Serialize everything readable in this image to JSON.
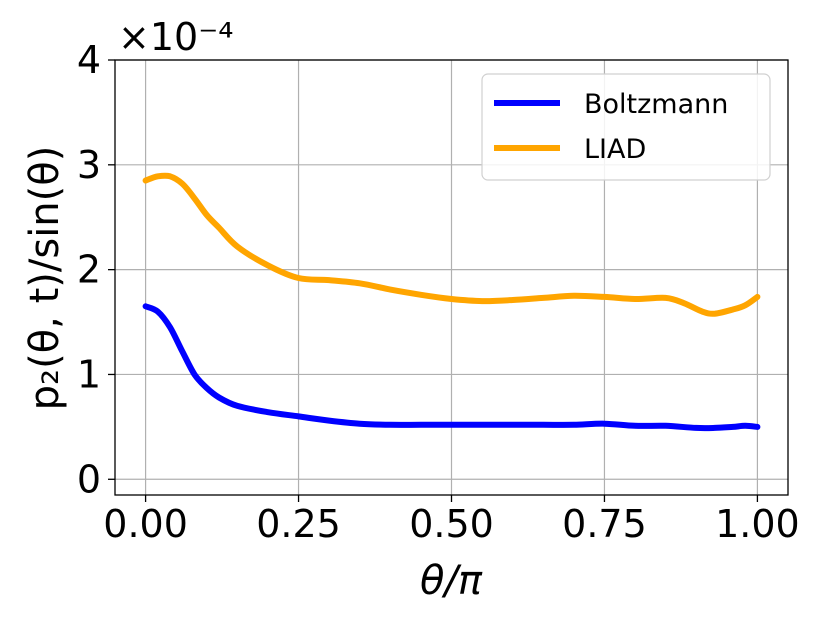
{
  "chart_data": {
    "type": "line",
    "title": "",
    "xlabel": "θ/π",
    "ylabel": "p₂(θ, t)/sin(θ)",
    "y_offset_label": "×10⁻⁴",
    "xlim": [
      -0.05,
      1.05
    ],
    "ylim": [
      -0.15,
      4.0
    ],
    "x_ticks": [
      0.0,
      0.25,
      0.5,
      0.75,
      1.0
    ],
    "x_tick_labels": [
      "0.00",
      "0.25",
      "0.50",
      "0.75",
      "1.00"
    ],
    "y_ticks": [
      0,
      1,
      2,
      3,
      4
    ],
    "y_tick_labels": [
      "0",
      "1",
      "2",
      "3",
      "4"
    ],
    "grid": true,
    "legend_position": "top-right",
    "series": [
      {
        "name": "Boltzmann",
        "color": "#0000ff",
        "x": [
          0.0,
          0.02,
          0.04,
          0.06,
          0.08,
          0.1,
          0.12,
          0.15,
          0.2,
          0.25,
          0.3,
          0.35,
          0.4,
          0.45,
          0.5,
          0.55,
          0.6,
          0.65,
          0.7,
          0.75,
          0.8,
          0.85,
          0.9,
          0.93,
          0.96,
          0.98,
          1.0
        ],
        "values": [
          1.65,
          1.6,
          1.45,
          1.22,
          1.0,
          0.87,
          0.78,
          0.7,
          0.64,
          0.6,
          0.56,
          0.53,
          0.52,
          0.52,
          0.52,
          0.52,
          0.52,
          0.52,
          0.52,
          0.53,
          0.51,
          0.51,
          0.49,
          0.49,
          0.5,
          0.51,
          0.5
        ]
      },
      {
        "name": "LIAD",
        "color": "#ffa500",
        "x": [
          0.0,
          0.02,
          0.04,
          0.06,
          0.08,
          0.1,
          0.12,
          0.15,
          0.2,
          0.25,
          0.3,
          0.35,
          0.4,
          0.45,
          0.5,
          0.55,
          0.6,
          0.65,
          0.7,
          0.75,
          0.8,
          0.85,
          0.88,
          0.91,
          0.93,
          0.96,
          0.98,
          1.0
        ],
        "values": [
          2.85,
          2.89,
          2.89,
          2.82,
          2.68,
          2.52,
          2.4,
          2.22,
          2.04,
          1.92,
          1.9,
          1.87,
          1.81,
          1.76,
          1.72,
          1.7,
          1.71,
          1.73,
          1.75,
          1.74,
          1.72,
          1.73,
          1.68,
          1.6,
          1.58,
          1.62,
          1.66,
          1.74
        ]
      }
    ]
  }
}
